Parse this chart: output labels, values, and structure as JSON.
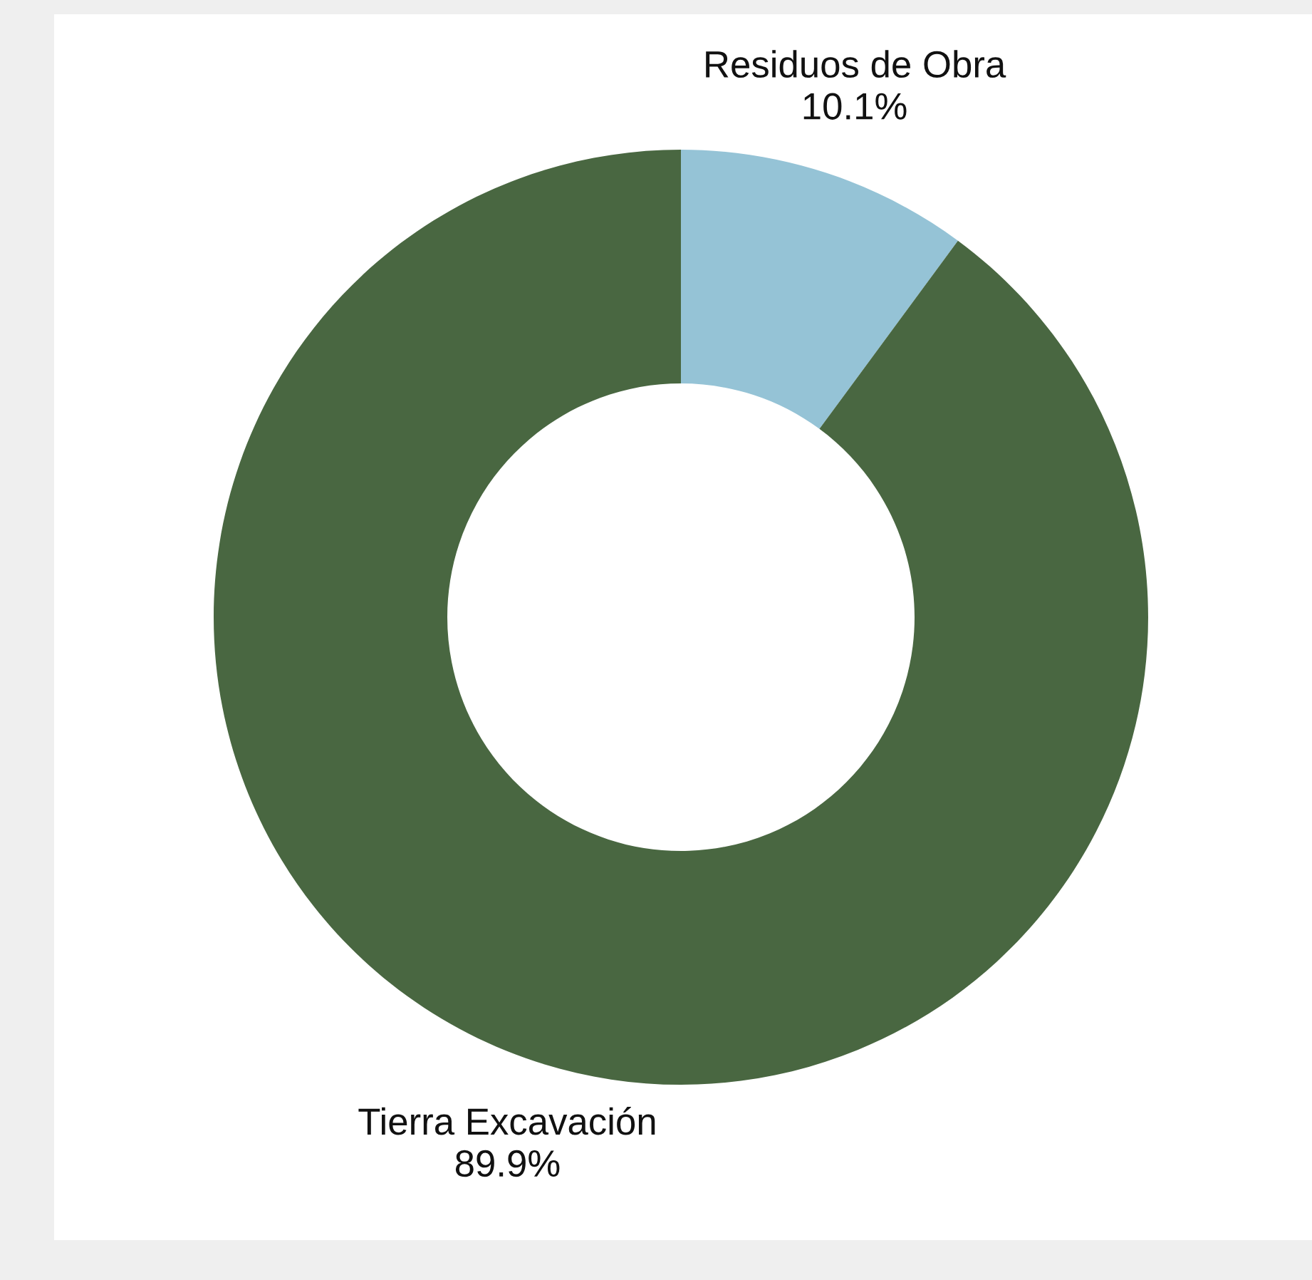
{
  "chart_data": {
    "type": "donut",
    "categories": [
      "Residuos de Obra",
      "Tierra Excavación"
    ],
    "values": [
      10.1,
      89.9
    ],
    "colors": [
      "#95c3d6",
      "#496741"
    ],
    "value_labels": [
      "10.1%",
      "89.9%"
    ]
  }
}
